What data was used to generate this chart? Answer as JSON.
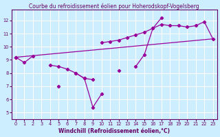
{
  "title": "Courbe du refroidissement éolien pour Hoherodskopf-Vogelsberg",
  "xlabel": "Windchill (Refroidissement éolien,°C)",
  "background_color": "#cceeff",
  "grid_color": "#ffffff",
  "line_color": "#990099",
  "x": [
    0,
    1,
    2,
    3,
    4,
    5,
    6,
    7,
    8,
    9,
    10,
    11,
    12,
    13,
    14,
    15,
    16,
    17,
    18,
    19,
    20,
    21,
    22,
    23
  ],
  "line1": [
    9.2,
    8.8,
    9.3,
    null,
    8.6,
    8.5,
    8.3,
    8.0,
    7.6,
    7.5,
    null,
    null,
    null,
    null,
    null,
    null,
    null,
    null,
    null,
    null,
    null,
    null,
    null,
    null
  ],
  "line2": [
    9.2,
    null,
    null,
    null,
    null,
    7.0,
    null,
    8.0,
    7.6,
    5.4,
    6.4,
    null,
    8.2,
    null,
    8.5,
    9.4,
    11.4,
    12.2,
    null,
    null,
    null,
    null,
    null,
    null
  ],
  "line3": [
    9.2,
    null,
    null,
    null,
    null,
    null,
    null,
    null,
    null,
    null,
    10.3,
    10.4,
    10.5,
    10.7,
    10.9,
    11.1,
    11.4,
    11.7,
    11.6,
    11.6,
    11.5,
    11.6,
    11.9,
    10.6
  ],
  "line4_x": [
    0,
    23
  ],
  "line4_y": [
    9.2,
    10.6
  ],
  "ylim": [
    4.5,
    12.8
  ],
  "xlim": [
    -0.5,
    23.5
  ],
  "yticks": [
    5,
    6,
    7,
    8,
    9,
    10,
    11,
    12
  ],
  "xticks": [
    0,
    1,
    2,
    3,
    4,
    5,
    6,
    7,
    8,
    9,
    10,
    11,
    12,
    13,
    14,
    15,
    16,
    17,
    18,
    19,
    20,
    21,
    22,
    23
  ],
  "figsize": [
    3.2,
    2.0
  ],
  "dpi": 100,
  "title_fontsize": 5.5,
  "xlabel_fontsize": 5.5,
  "tick_fontsize": 4.8,
  "spine_color": "#660066",
  "title_color": "#660066",
  "xlabel_color": "#660066",
  "tick_color": "#660066"
}
